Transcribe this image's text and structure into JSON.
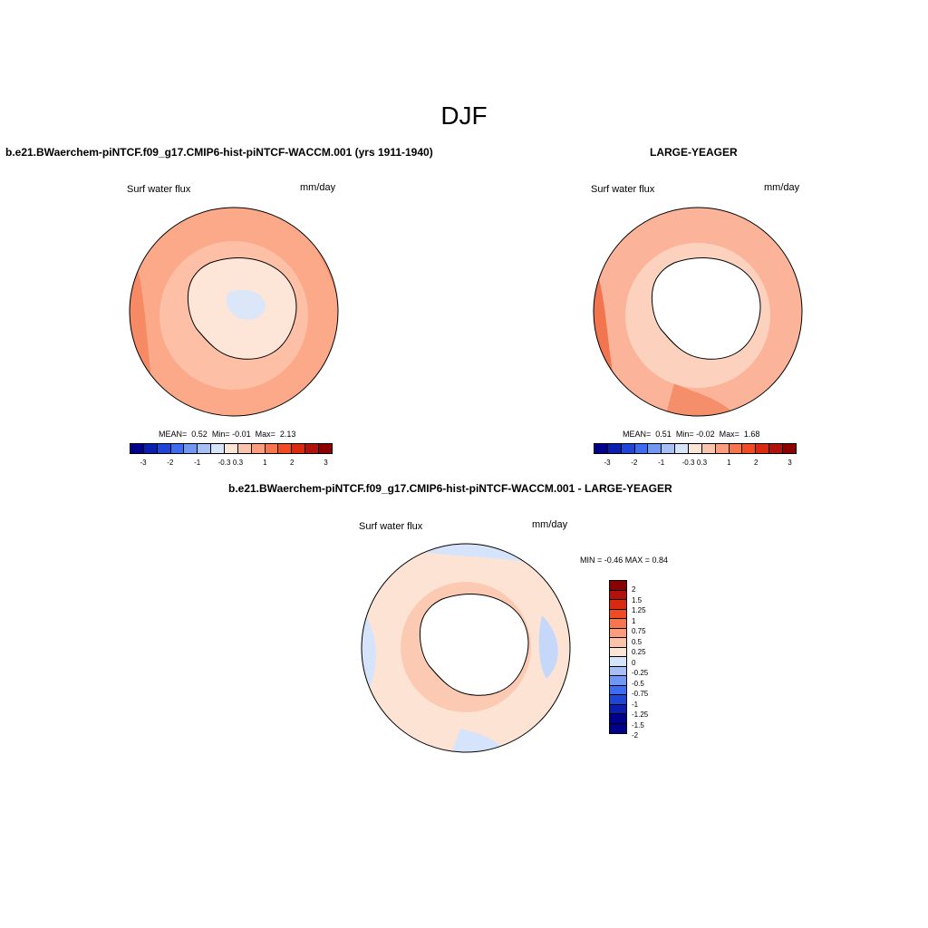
{
  "title": "DJF",
  "units": "mm/day",
  "variable": "Surf water flux",
  "panels": [
    {
      "id": "case",
      "title": "b.e21.BWaerchem-piNTCF.f09_g17.CMIP6-hist-piNTCF-WACCM.001 (yrs 1911-1940)",
      "left_label": "Surf water flux",
      "right_label": "mm/day",
      "stats": {
        "mean_label": "MEAN=",
        "mean": "0.52",
        "min_label": "Min=",
        "min": "-0.01",
        "max_label": "Max=",
        "max": "2.13"
      },
      "field_color": "#fca98a",
      "ice_color": "#fde6d8"
    },
    {
      "id": "obs",
      "title": "LARGE-YEAGER",
      "left_label": "Surf water flux",
      "right_label": "mm/day",
      "stats": {
        "mean_label": "MEAN=",
        "mean": "0.51",
        "min_label": "Min=",
        "min": "-0.02",
        "max_label": "Max=",
        "max": "1.68"
      },
      "field_color": "#fbb499",
      "ice_color": "#ffffff"
    },
    {
      "id": "diff",
      "title": "b.e21.BWaerchem-piNTCF.f09_g17.CMIP6-hist-piNTCF-WACCM.001 - LARGE-YEAGER",
      "left_label": "Surf water flux",
      "right_label": "mm/day",
      "minmax_text": "MIN =  -0.46 MAX =   0.84",
      "field_color": "#fde3d3",
      "ice_color": "#ffffff"
    }
  ],
  "colorbar_main": {
    "colors": [
      "#00008b",
      "#0a1fae",
      "#1f45d6",
      "#3d6cf0",
      "#7097f4",
      "#a6bff5",
      "#d5e5fb",
      "#fde5d6",
      "#fbc3ab",
      "#fb9d7c",
      "#f7754d",
      "#f04b22",
      "#d92a10",
      "#b2120b",
      "#8b0000"
    ],
    "labels": [
      "-3",
      "-2",
      "-1",
      "-0.3",
      "0.3",
      "1",
      "2",
      "3"
    ]
  },
  "colorbar_diff": {
    "colors": [
      "#8b0000",
      "#b2120b",
      "#d92a10",
      "#f04b22",
      "#f7754d",
      "#fb9d7c",
      "#fbc3ab",
      "#fde5d6",
      "#d5e5fb",
      "#a6bff5",
      "#7097f4",
      "#3d6cf0",
      "#1f45d6",
      "#0a1fae",
      "#00008b"
    ],
    "labels": [
      "2",
      "1.5",
      "1.25",
      "1",
      "0.75",
      "0.5",
      "0.25",
      "0",
      "-0.25",
      "-0.5",
      "-0.75",
      "-1",
      "-1.25",
      "-1.5",
      "-2"
    ]
  }
}
